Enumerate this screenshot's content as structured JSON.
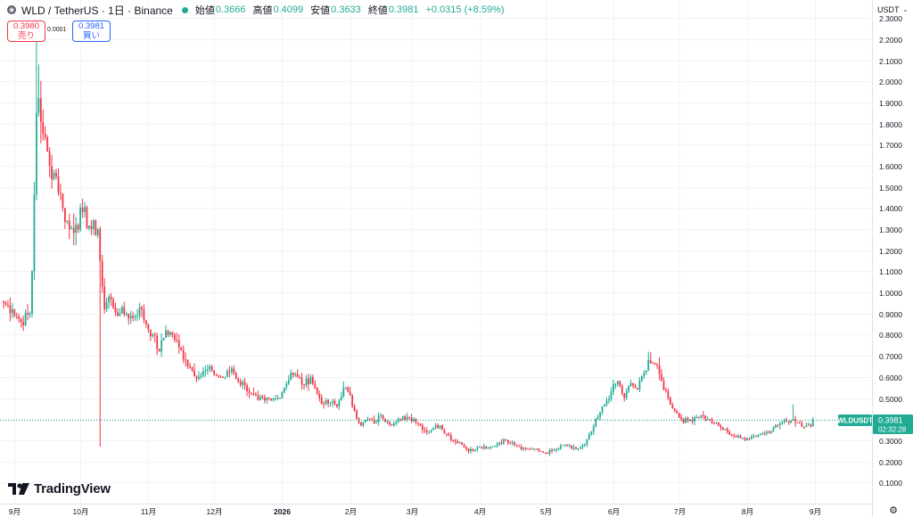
{
  "header": {
    "symbol_title": "WLD / TetherUS · 1日 · Binance",
    "open_label": "始値",
    "open_value": "0.3666",
    "high_label": "高値",
    "high_value": "0.4099",
    "low_label": "安値",
    "low_value": "0.3633",
    "close_label": "終値",
    "close_value": "0.3981",
    "change": "+0.0315 (+8.59%)"
  },
  "trade": {
    "sell_price": "0.3980",
    "sell_label": "売り",
    "spread": "0.0001",
    "buy_price": "0.3981",
    "buy_label": "買い"
  },
  "axis": {
    "currency": "USDT"
  },
  "price_tag": {
    "symbol": "WLDUSDT",
    "price": "0.3981",
    "countdown": "02:32:28"
  },
  "brand": {
    "name": "TradingView"
  },
  "colors": {
    "up": "#22ab94",
    "down": "#f23645",
    "grid": "#f0f3fa",
    "text": "#131722"
  },
  "icons": {
    "currency_dropdown": "chevron-down-icon",
    "settings": "gear-icon",
    "logo": "tradingview-logo-icon"
  },
  "chart_data": {
    "type": "candlestick",
    "title": "WLD / TetherUS · 1日 · Binance",
    "y_ticks": [
      0.1,
      0.2,
      0.3,
      0.4,
      0.5,
      0.6,
      0.7,
      0.8,
      0.9,
      1.0,
      1.1,
      1.2,
      1.3,
      1.4,
      1.5,
      1.6,
      1.7,
      1.8,
      1.9,
      2.0,
      2.1,
      2.2,
      2.3
    ],
    "y_tick_labels": [
      "0.1000",
      "0.2000",
      "0.3000",
      "0.4000",
      "0.5000",
      "0.6000",
      "0.7000",
      "0.8000",
      "0.9000",
      "1.0000",
      "1.1000",
      "1.2000",
      "1.3000",
      "1.4000",
      "1.5000",
      "1.6000",
      "1.7000",
      "1.8000",
      "1.9000",
      "2.0000",
      "2.1000",
      "2.2000",
      "2.3000"
    ],
    "ylim": [
      0.0,
      2.385
    ],
    "x_labels": [
      {
        "label": "9月",
        "day": 5
      },
      {
        "label": "10月",
        "day": 35
      },
      {
        "label": "11月",
        "day": 66
      },
      {
        "label": "12月",
        "day": 96
      },
      {
        "label": "2026",
        "day": 127
      },
      {
        "label": "2月",
        "day": 158
      },
      {
        "label": "3月",
        "day": 186
      },
      {
        "label": "4月",
        "day": 217
      },
      {
        "label": "5月",
        "day": 247
      },
      {
        "label": "6月",
        "day": 278
      },
      {
        "label": "7月",
        "day": 308
      },
      {
        "label": "8月",
        "day": 339
      },
      {
        "label": "9月",
        "day": 370
      }
    ],
    "total_days": 372,
    "anchors": [
      [
        0,
        0.95
      ],
      [
        4,
        0.92
      ],
      [
        8,
        0.86
      ],
      [
        12,
        0.9
      ],
      [
        13,
        1.1
      ],
      [
        15,
        1.85
      ],
      [
        16,
        1.92
      ],
      [
        18,
        1.75
      ],
      [
        21,
        1.6
      ],
      [
        24,
        1.55
      ],
      [
        27,
        1.4
      ],
      [
        30,
        1.3
      ],
      [
        33,
        1.32
      ],
      [
        36,
        1.38
      ],
      [
        40,
        1.3
      ],
      [
        43,
        1.3
      ],
      [
        44,
        1.15
      ],
      [
        46,
        0.92
      ],
      [
        48,
        0.98
      ],
      [
        50,
        0.93
      ],
      [
        53,
        0.9
      ],
      [
        56,
        0.9
      ],
      [
        59,
        0.88
      ],
      [
        62,
        0.93
      ],
      [
        65,
        0.85
      ],
      [
        68,
        0.8
      ],
      [
        71,
        0.72
      ],
      [
        74,
        0.82
      ],
      [
        77,
        0.8
      ],
      [
        80,
        0.74
      ],
      [
        83,
        0.68
      ],
      [
        86,
        0.63
      ],
      [
        89,
        0.6
      ],
      [
        92,
        0.63
      ],
      [
        95,
        0.63
      ],
      [
        98,
        0.6
      ],
      [
        101,
        0.6
      ],
      [
        104,
        0.64
      ],
      [
        107,
        0.58
      ],
      [
        110,
        0.56
      ],
      [
        113,
        0.52
      ],
      [
        116,
        0.49
      ],
      [
        119,
        0.49
      ],
      [
        122,
        0.49
      ],
      [
        125,
        0.5
      ],
      [
        128,
        0.55
      ],
      [
        131,
        0.62
      ],
      [
        134,
        0.6
      ],
      [
        137,
        0.56
      ],
      [
        140,
        0.6
      ],
      [
        143,
        0.52
      ],
      [
        146,
        0.47
      ],
      [
        149,
        0.48
      ],
      [
        152,
        0.46
      ],
      [
        155,
        0.55
      ],
      [
        157,
        0.53
      ],
      [
        160,
        0.44
      ],
      [
        163,
        0.37
      ],
      [
        166,
        0.4
      ],
      [
        169,
        0.38
      ],
      [
        172,
        0.42
      ],
      [
        175,
        0.39
      ],
      [
        178,
        0.38
      ],
      [
        181,
        0.4
      ],
      [
        184,
        0.41
      ],
      [
        187,
        0.4
      ],
      [
        190,
        0.37
      ],
      [
        193,
        0.34
      ],
      [
        196,
        0.36
      ],
      [
        199,
        0.37
      ],
      [
        202,
        0.33
      ],
      [
        205,
        0.3
      ],
      [
        208,
        0.29
      ],
      [
        211,
        0.26
      ],
      [
        214,
        0.25
      ],
      [
        217,
        0.27
      ],
      [
        220,
        0.26
      ],
      [
        223,
        0.27
      ],
      [
        226,
        0.29
      ],
      [
        229,
        0.3
      ],
      [
        232,
        0.29
      ],
      [
        235,
        0.27
      ],
      [
        238,
        0.26
      ],
      [
        241,
        0.26
      ],
      [
        244,
        0.25
      ],
      [
        247,
        0.24
      ],
      [
        250,
        0.25
      ],
      [
        253,
        0.26
      ],
      [
        256,
        0.28
      ],
      [
        259,
        0.26
      ],
      [
        262,
        0.26
      ],
      [
        265,
        0.28
      ],
      [
        268,
        0.34
      ],
      [
        271,
        0.41
      ],
      [
        274,
        0.47
      ],
      [
        277,
        0.53
      ],
      [
        280,
        0.58
      ],
      [
        283,
        0.5
      ],
      [
        286,
        0.57
      ],
      [
        289,
        0.54
      ],
      [
        292,
        0.62
      ],
      [
        294,
        0.68
      ],
      [
        297,
        0.66
      ],
      [
        300,
        0.58
      ],
      [
        303,
        0.5
      ],
      [
        306,
        0.44
      ],
      [
        309,
        0.4
      ],
      [
        312,
        0.39
      ],
      [
        315,
        0.41
      ],
      [
        318,
        0.42
      ],
      [
        321,
        0.4
      ],
      [
        324,
        0.38
      ],
      [
        327,
        0.36
      ],
      [
        330,
        0.34
      ],
      [
        333,
        0.32
      ],
      [
        336,
        0.31
      ],
      [
        339,
        0.31
      ],
      [
        342,
        0.32
      ],
      [
        345,
        0.33
      ],
      [
        348,
        0.34
      ],
      [
        351,
        0.36
      ],
      [
        354,
        0.38
      ],
      [
        357,
        0.39
      ],
      [
        360,
        0.4
      ],
      [
        363,
        0.38
      ],
      [
        366,
        0.37
      ],
      [
        368,
        0.3666
      ],
      [
        369,
        0.3981
      ]
    ],
    "spikes": [
      {
        "day": 15,
        "high": 2.21
      },
      {
        "day": 16,
        "high": 2.08
      },
      {
        "day": 44,
        "low": 0.27
      },
      {
        "day": 294,
        "high": 0.72
      },
      {
        "day": 360,
        "high": 0.47
      }
    ],
    "last_candle": {
      "open": 0.3666,
      "high": 0.4099,
      "low": 0.3633,
      "close": 0.3981
    },
    "last_price": 0.3981
  }
}
